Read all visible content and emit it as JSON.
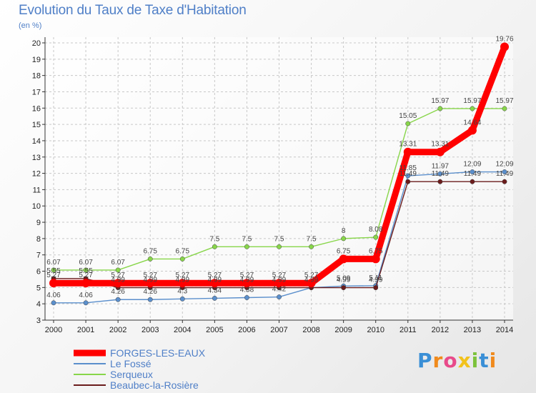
{
  "chart_data": {
    "type": "line",
    "title": "Evolution du Taux de Taxe d'Habitation",
    "unit": "(en %)",
    "x": [
      "2000",
      "2001",
      "2002",
      "2003",
      "2004",
      "2005",
      "2006",
      "2007",
      "2008",
      "2009",
      "2010",
      "2011",
      "2012",
      "2013",
      "2014"
    ],
    "ylim": [
      3,
      20
    ],
    "yticks": [
      3,
      4,
      5,
      6,
      7,
      8,
      9,
      10,
      11,
      12,
      13,
      14,
      15,
      16,
      17,
      18,
      19,
      20
    ],
    "grid": true,
    "legend_position": "bottom-left",
    "series": [
      {
        "name": "FORGES-LES-EAUX",
        "color": "#ff0000",
        "values": [
          5.27,
          5.27,
          5.27,
          5.27,
          5.27,
          5.27,
          5.27,
          5.27,
          5.27,
          6.75,
          6.75,
          13.31,
          13.31,
          14.64,
          19.76
        ],
        "labels": [
          "5.27",
          "5.27",
          "5.27",
          "5.27",
          "5.27",
          "5.27",
          "5.27",
          "5.27",
          "5.27",
          "6.75",
          "6.75",
          "13.31",
          "13.31",
          "14.64",
          "19.76"
        ]
      },
      {
        "name": "Le Fossé",
        "color": "#5b8fcc",
        "values": [
          4.06,
          4.06,
          4.26,
          4.26,
          4.3,
          4.34,
          4.38,
          4.42,
          4.99,
          5.09,
          5.11,
          11.85,
          11.97,
          12.09,
          12.09
        ],
        "labels": [
          "4.06",
          "4.06",
          "4.26",
          "4.26",
          "4.3",
          "4.34",
          "4.38",
          "4.42",
          "",
          "5.09",
          "5.11",
          "11.85",
          "11.97",
          "12.09",
          "12.09"
        ]
      },
      {
        "name": "Serqueux",
        "color": "#88d64a",
        "values": [
          6.07,
          6.07,
          6.07,
          6.75,
          6.75,
          7.5,
          7.5,
          7.5,
          7.5,
          8,
          8.08,
          15.05,
          15.97,
          15.97,
          15.97
        ],
        "labels": [
          "6.07",
          "6.07",
          "6.07",
          "6.75",
          "6.75",
          "7.5",
          "7.5",
          "7.5",
          "7.5",
          "8",
          "8.08",
          "15.05",
          "15.97",
          "15.97",
          "15.97"
        ]
      },
      {
        "name": "Beaubec-la-Rosière",
        "color": "#6b1c1c",
        "values": [
          5.55,
          5.55,
          4.99,
          4.99,
          4.99,
          4.99,
          4.99,
          4.99,
          4.99,
          4.99,
          4.99,
          11.49,
          11.49,
          11.49,
          11.49
        ],
        "labels": [
          "5.55",
          "5.55",
          "4.99",
          "4.99",
          "4.99",
          "4.99",
          "4.99",
          "4.99",
          "4.99",
          "4.99",
          "4.99",
          "11.49",
          "11.49",
          "11.49",
          "11.49"
        ]
      }
    ]
  },
  "logo": {
    "letters": [
      "P",
      "r",
      "o",
      "x",
      "i",
      "t",
      "i"
    ],
    "colors": [
      "#3a8fd6",
      "#f08a1c",
      "#e84a8a",
      "#f2c21b",
      "#7cc23b",
      "#3a8fd6",
      "#f08a1c"
    ]
  }
}
